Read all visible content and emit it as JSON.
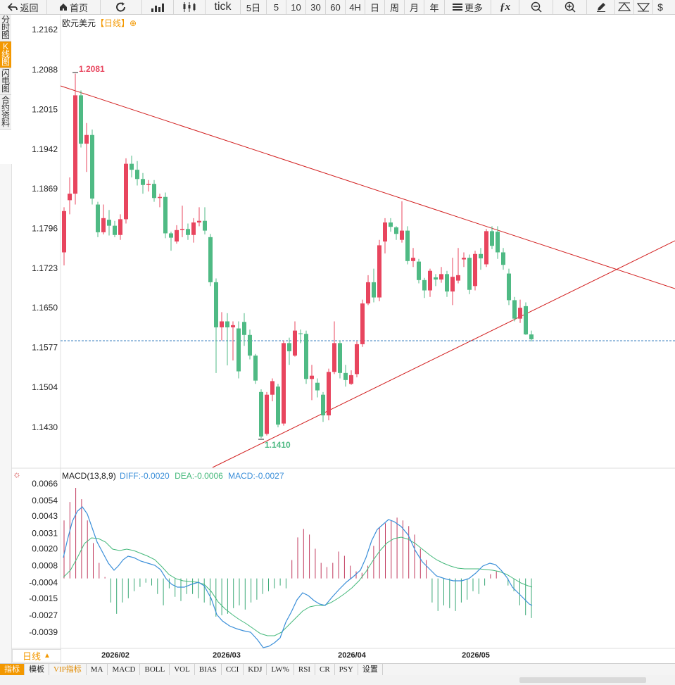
{
  "toolbar": {
    "back": "返回",
    "home": "首页",
    "tick": "tick",
    "periods": [
      "5日",
      "5",
      "10",
      "30",
      "60",
      "4H",
      "日",
      "周",
      "月",
      "年"
    ],
    "more": "更多"
  },
  "side_tabs": [
    {
      "label": "分时图",
      "active": false
    },
    {
      "label": "K线图",
      "active": true
    },
    {
      "label": "闪电图",
      "active": false
    },
    {
      "label": "合约资料",
      "active": false
    }
  ],
  "main_chart": {
    "symbol": "欧元美元",
    "period_tag": "【日线】",
    "y_ticks": [
      "1.2162",
      "1.2088",
      "1.2015",
      "1.1942",
      "1.1869",
      "1.1796",
      "1.1723",
      "1.1650",
      "1.1577",
      "1.1504",
      "1.1430"
    ],
    "high_label": "1.2081",
    "low_label": "1.1410",
    "x_ticks": [
      "2026/02",
      "2026/03",
      "2026/04",
      "2026/05"
    ],
    "up_color": "#e8455e",
    "down_color": "#4fba84"
  },
  "macd_panel": {
    "title": "MACD(13,8,9)",
    "diff": "DIFF:-0.0020",
    "dea": "DEA:-0.0006",
    "macd": "MACD:-0.0027",
    "y_ticks": [
      "0.0066",
      "0.0054",
      "0.0043",
      "0.0031",
      "0.0020",
      "0.0008",
      "-0.0004",
      "-0.0015",
      "-0.0027",
      "-0.0039"
    ],
    "diff_color": "#3b8fd9",
    "dea_color": "#43b87a"
  },
  "period_label": "日线",
  "bottom_tabs": [
    "指标",
    "模板",
    "VIP指标",
    "MA",
    "MACD",
    "BOLL",
    "VOL",
    "BIAS",
    "CCI",
    "KDJ",
    "LW%",
    "RSI",
    "CR",
    "PSY",
    "设置"
  ]
}
